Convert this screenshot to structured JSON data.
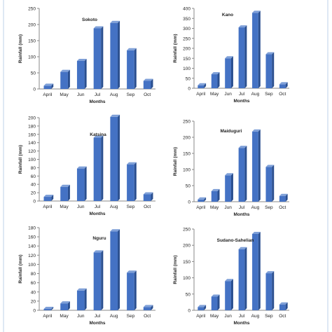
{
  "colors": {
    "bar_front": "#4472c4",
    "bar_side": "#2a4f8f",
    "bar_top": "#7fa0d8",
    "axis": "#888888",
    "text": "#222222",
    "frame": "#bcd0e8"
  },
  "chart_data": [
    {
      "type": "bar",
      "title": "Sokoto",
      "xlabel": "Months",
      "ylabel": "Rainfall (mm)",
      "categories": [
        "April",
        "May",
        "Jun",
        "Jul",
        "Aug",
        "Sep",
        "Oct"
      ],
      "values": [
        10,
        53,
        87,
        188,
        205,
        120,
        25
      ],
      "ylim": [
        0,
        250
      ],
      "yticks": [
        0,
        50,
        100,
        150,
        200,
        250
      ],
      "legend": "none",
      "grid": false
    },
    {
      "type": "bar",
      "title": "Kano",
      "xlabel": "Months",
      "ylabel": "Rainfall (mm)",
      "categories": [
        "April",
        "May",
        "Jun",
        "Jul",
        "Aug",
        "Sep",
        "Oct"
      ],
      "values": [
        15,
        70,
        150,
        305,
        378,
        170,
        20
      ],
      "ylim": [
        0,
        400
      ],
      "yticks": [
        0,
        50,
        100,
        150,
        200,
        250,
        300,
        350,
        400
      ],
      "legend": "none",
      "grid": false
    },
    {
      "type": "bar",
      "title": "Katsina",
      "xlabel": "Months",
      "ylabel": "Rainfall (mm)",
      "categories": [
        "April",
        "May",
        "Jun",
        "Jul",
        "Aug",
        "Sep",
        "Oct"
      ],
      "values": [
        10,
        34,
        78,
        152,
        202,
        88,
        16
      ],
      "ylim": [
        0,
        200
      ],
      "yticks": [
        0,
        20,
        40,
        60,
        80,
        100,
        120,
        140,
        160,
        180,
        200
      ],
      "legend": "none",
      "grid": false
    },
    {
      "type": "bar",
      "title": "Maiduguri",
      "xlabel": "Months",
      "ylabel": "Rainfall (mm)",
      "categories": [
        "April",
        "May",
        "Jun",
        "Jul",
        "Aug",
        "Sep",
        "Oct"
      ],
      "values": [
        7,
        33,
        82,
        167,
        218,
        108,
        18
      ],
      "ylim": [
        0,
        250
      ],
      "yticks": [
        0,
        50,
        100,
        150,
        200,
        250
      ],
      "legend": "none",
      "grid": false
    },
    {
      "type": "bar",
      "title": "Nguru",
      "xlabel": "Months",
      "ylabel": "Rainfall (mm)",
      "categories": [
        "April",
        "May",
        "Jun",
        "Jul",
        "Aug",
        "Sep",
        "Oct"
      ],
      "values": [
        3,
        15,
        43,
        126,
        172,
        82,
        7
      ],
      "ylim": [
        0,
        180
      ],
      "yticks": [
        0,
        20,
        40,
        60,
        80,
        100,
        120,
        140,
        160,
        180
      ],
      "legend": "none",
      "grid": false
    },
    {
      "type": "bar",
      "title": "Sudano-Sahelian",
      "xlabel": "Months",
      "ylabel": "Rainfall (mm)",
      "categories": [
        "April",
        "May",
        "Jun",
        "Jul",
        "Aug",
        "Sep",
        "Oct"
      ],
      "values": [
        10,
        42,
        90,
        188,
        235,
        114,
        18
      ],
      "ylim": [
        0,
        250
      ],
      "yticks": [
        0,
        50,
        100,
        150,
        200,
        250
      ],
      "legend": "none",
      "grid": false
    }
  ]
}
